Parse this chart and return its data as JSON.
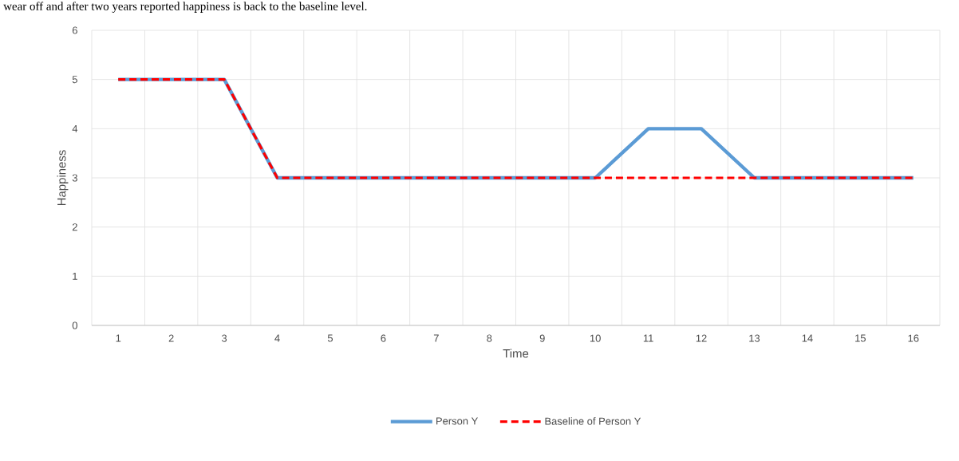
{
  "chart_data": {
    "type": "line",
    "xlabel": "Time",
    "ylabel": "Happiness",
    "annotations": [
      "wear off and after two years reported happiness is back to the baseline level."
    ],
    "categories": [
      "1",
      "2",
      "3",
      "4",
      "5",
      "6",
      "7",
      "8",
      "9",
      "10",
      "11",
      "12",
      "13",
      "14",
      "15",
      "16"
    ],
    "series": [
      {
        "name": "Person Y",
        "color": "#5b9bd5",
        "line_style": "solid",
        "values": [
          5,
          5,
          5,
          3,
          3,
          3,
          3,
          3,
          3,
          3,
          4,
          4,
          3,
          3,
          3,
          3
        ]
      },
      {
        "name": "Baseline of Person Y",
        "color": "#ff0000",
        "line_style": "dashed",
        "values": [
          5,
          5,
          5,
          3,
          3,
          3,
          3,
          3,
          3,
          3,
          3,
          3,
          3,
          3,
          3,
          3
        ]
      }
    ],
    "ylim": [
      0,
      6
    ],
    "yticks": [
      0,
      1,
      2,
      3,
      4,
      5,
      6
    ],
    "grid": true,
    "legend": "bottom"
  }
}
